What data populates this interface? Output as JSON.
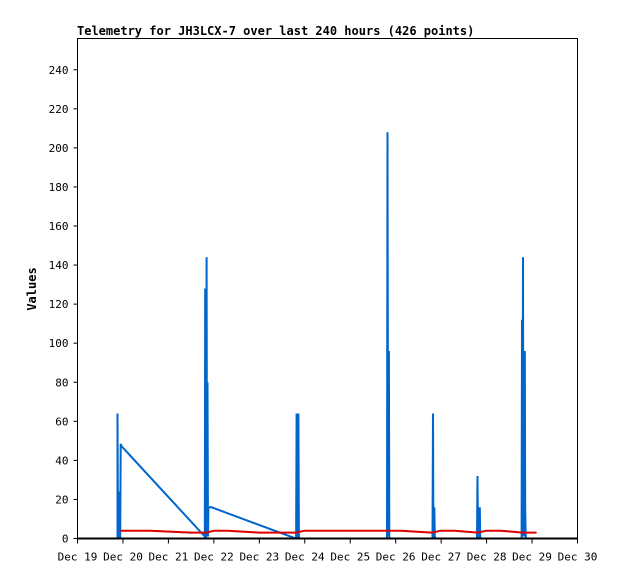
{
  "chart_data": {
    "type": "line",
    "title": "Telemetry for JH3LCX-7 over last 240 hours (426 points)",
    "xlabel": "",
    "ylabel": "Values",
    "x_tick_labels": [
      "Dec 19",
      "Dec 20",
      "Dec 21",
      "Dec 22",
      "Dec 23",
      "Dec 24",
      "Dec 25",
      "Dec 26",
      "Dec 27",
      "Dec 28",
      "Dec 29",
      "Dec 30"
    ],
    "x_tick_days": [
      19,
      20,
      21,
      22,
      23,
      24,
      25,
      26,
      27,
      28,
      29,
      30
    ],
    "xlim": [
      19,
      30
    ],
    "ylim": [
      0,
      256
    ],
    "y_ticks": [
      0,
      20,
      40,
      60,
      80,
      100,
      120,
      140,
      160,
      180,
      200,
      220,
      240
    ],
    "grid": false,
    "legend": "none",
    "series": [
      {
        "color": "#0066cc",
        "x": [
          19.88,
          19.88,
          19.89,
          19.9,
          19.92,
          19.93,
          19.94,
          19.95,
          19.96,
          19.97,
          19.98,
          21.8,
          21.81,
          21.82,
          21.83,
          21.84,
          21.85,
          21.86,
          21.87,
          21.88,
          21.89,
          21.9,
          21.91,
          21.92,
          21.93,
          21.94,
          21.95,
          23.8,
          23.81,
          23.82,
          23.83,
          23.84,
          23.85,
          23.86,
          23.87,
          23.88,
          23.89,
          23.9,
          23.91,
          23.92,
          23.93,
          25.8,
          25.81,
          25.82,
          25.83,
          25.84,
          25.85,
          25.86,
          25.87,
          25.88,
          25.89,
          25.9,
          25.91,
          25.92,
          26.8,
          26.81,
          26.82,
          26.83,
          26.84,
          26.85,
          26.86,
          26.87,
          26.88,
          26.89,
          26.9,
          26.91,
          26.92,
          27.78,
          27.79,
          27.8,
          27.81,
          27.82,
          27.83,
          27.84,
          27.85,
          27.86,
          27.87,
          27.88,
          27.89,
          27.9,
          28.76,
          28.77,
          28.78,
          28.79,
          28.8,
          28.81,
          28.82,
          28.83,
          28.84,
          28.85,
          28.86,
          28.87,
          28.88,
          28.89,
          28.9
        ],
        "y": [
          0,
          64,
          1,
          0,
          0,
          24,
          0,
          48,
          48,
          47,
          47,
          1,
          128,
          1,
          0,
          144,
          1,
          80,
          1,
          16,
          16,
          16,
          16,
          16,
          16,
          16,
          16,
          0,
          0,
          64,
          1,
          0,
          0,
          64,
          1,
          0,
          0,
          0,
          0,
          0,
          0,
          0,
          0,
          208,
          40,
          1,
          96,
          1,
          0,
          0,
          0,
          0,
          0,
          0,
          0,
          0,
          64,
          1,
          0,
          16,
          1,
          0,
          0,
          0,
          0,
          0,
          0,
          0,
          0,
          32,
          1,
          0,
          16,
          1,
          16,
          1,
          0,
          0,
          0,
          0,
          0,
          0,
          112,
          1,
          144,
          1,
          16,
          1,
          96,
          16,
          1,
          0,
          0,
          0,
          0
        ]
      },
      {
        "color": "#dd0000",
        "x": [
          19.94,
          20.6,
          21.5,
          21.85,
          22.0,
          22.3,
          23.0,
          23.8,
          24.0,
          25.0,
          25.9,
          26.1,
          26.8,
          27.0,
          27.3,
          27.8,
          28.0,
          28.3,
          28.8,
          29.1
        ],
        "y": [
          4,
          4,
          3,
          3,
          4,
          4,
          3,
          3,
          4,
          4,
          4,
          4,
          3,
          4,
          4,
          3,
          4,
          4,
          3,
          3
        ]
      }
    ]
  }
}
